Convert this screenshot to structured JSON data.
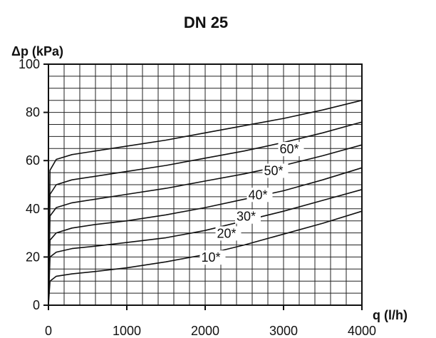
{
  "chart_data": {
    "type": "line",
    "title": "DN 25",
    "xlabel": "q (l/h)",
    "ylabel": "Δp (kPa)",
    "xlim": [
      0,
      4000
    ],
    "ylim": [
      0,
      100
    ],
    "x_ticks": [
      0,
      1000,
      2000,
      3000,
      4000
    ],
    "y_ticks": [
      0,
      20,
      40,
      60,
      80,
      100
    ],
    "x_minor_step": 200,
    "y_minor_step": 5,
    "grid": true,
    "colors": {
      "line": "#111111",
      "grid": "#222222",
      "background": "#ffffff"
    },
    "series": [
      {
        "name": "10*",
        "label_at": [
          1950,
          18
        ],
        "x": [
          0,
          20,
          100,
          300,
          600,
          1000,
          1500,
          2000,
          2500,
          3000,
          3500,
          4000
        ],
        "y": [
          0,
          10,
          12,
          13,
          14,
          15.5,
          18,
          21,
          25,
          29.5,
          34,
          39
        ]
      },
      {
        "name": "20*",
        "label_at": [
          2150,
          28
        ],
        "x": [
          0,
          20,
          100,
          300,
          600,
          1000,
          1500,
          2000,
          2500,
          3000,
          3500,
          4000
        ],
        "y": [
          0,
          20,
          22,
          23.5,
          24.5,
          26,
          28,
          31,
          35,
          39,
          43.5,
          48
        ]
      },
      {
        "name": "30*",
        "label_at": [
          2400,
          35
        ],
        "x": [
          0,
          20,
          100,
          300,
          600,
          1000,
          1500,
          2000,
          2500,
          3000,
          3500,
          4000
        ],
        "y": [
          0,
          27,
          30,
          32,
          33.5,
          35,
          37.5,
          40.5,
          44,
          47.5,
          52,
          57
        ]
      },
      {
        "name": "40*",
        "label_at": [
          2550,
          44
        ],
        "x": [
          0,
          20,
          100,
          300,
          600,
          1000,
          1500,
          2000,
          2500,
          3000,
          3500,
          4000
        ],
        "y": [
          0,
          37,
          40.5,
          42.5,
          44,
          46,
          48.5,
          51.5,
          54.5,
          58,
          62,
          66.5
        ]
      },
      {
        "name": "50*",
        "label_at": [
          2750,
          54
        ],
        "x": [
          0,
          20,
          100,
          300,
          600,
          1000,
          1500,
          2000,
          2500,
          3000,
          3500,
          4000
        ],
        "y": [
          0,
          46,
          50,
          52,
          53.5,
          55.5,
          58,
          61,
          64,
          67.5,
          71.5,
          76
        ]
      },
      {
        "name": "60*",
        "label_at": [
          2950,
          63
        ],
        "x": [
          0,
          20,
          100,
          300,
          600,
          1000,
          1500,
          2000,
          2500,
          3000,
          3500,
          4000
        ],
        "y": [
          0,
          56,
          60.5,
          62.5,
          64,
          66,
          68.5,
          71.5,
          74.5,
          77.5,
          81,
          85
        ]
      }
    ]
  }
}
